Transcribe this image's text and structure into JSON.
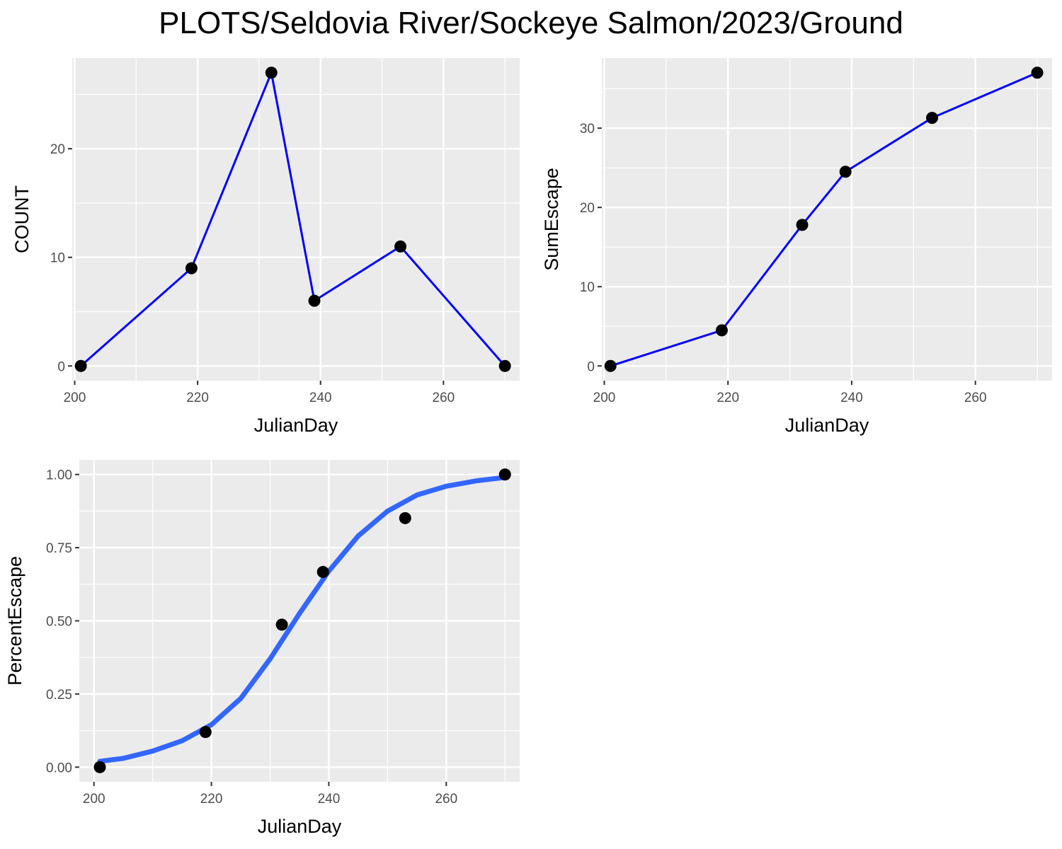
{
  "title": "PLOTS/Seldovia River/Sockeye Salmon/2023/Ground",
  "colors": {
    "panel_bg": "#EBEBEB",
    "grid": "#FFFFFF",
    "line": "#0000FF",
    "smooth": "#3366FF",
    "point": "#000000",
    "tick_text": "#4D4D4D"
  },
  "chart_data": [
    {
      "type": "line",
      "xlabel": "JulianDay",
      "ylabel": "COUNT",
      "xlim": [
        199.6,
        272.4
      ],
      "ylim": [
        -1.35,
        28.35
      ],
      "xticks": [
        200,
        220,
        240,
        260
      ],
      "yticks": [
        0,
        10,
        20
      ],
      "x": [
        201,
        219,
        232,
        239,
        253,
        270
      ],
      "series": [
        {
          "values": [
            0,
            9,
            27,
            6,
            11,
            0
          ]
        }
      ],
      "points": true,
      "grid": true
    },
    {
      "type": "line",
      "xlabel": "JulianDay",
      "ylabel": "SumEscape",
      "xlim": [
        199.6,
        272.4
      ],
      "ylim": [
        -1.85,
        38.85
      ],
      "xticks": [
        200,
        220,
        240,
        260
      ],
      "yticks": [
        0,
        10,
        20,
        30
      ],
      "x": [
        201,
        219,
        232,
        239,
        253,
        270
      ],
      "series": [
        {
          "values": [
            0,
            4.5,
            17.8,
            24.5,
            31.3,
            37
          ]
        }
      ],
      "points": true,
      "grid": true
    },
    {
      "type": "scatter",
      "xlabel": "JulianDay",
      "ylabel": "PercentEscape",
      "xlim": [
        197.5,
        272.5
      ],
      "ylim": [
        -0.05,
        1.05
      ],
      "xticks": [
        200,
        220,
        240,
        260
      ],
      "yticks": [
        0,
        0.25,
        0.5,
        0.75,
        1
      ],
      "ytick_labels": [
        "0.00",
        "0.25",
        "0.50",
        "0.75",
        "1.00"
      ],
      "x": [
        201,
        219,
        232,
        239,
        253,
        270
      ],
      "series": [
        {
          "values": [
            0,
            0.12,
            0.487,
            0.667,
            0.851,
            1.0
          ]
        }
      ],
      "smooth": {
        "x": [
          201,
          205,
          210,
          215,
          220,
          225,
          230,
          235,
          240,
          245,
          250,
          255,
          260,
          265,
          270
        ],
        "y": [
          0.02,
          0.03,
          0.055,
          0.09,
          0.145,
          0.235,
          0.37,
          0.525,
          0.67,
          0.79,
          0.875,
          0.93,
          0.96,
          0.978,
          0.99
        ]
      },
      "grid": true
    }
  ]
}
